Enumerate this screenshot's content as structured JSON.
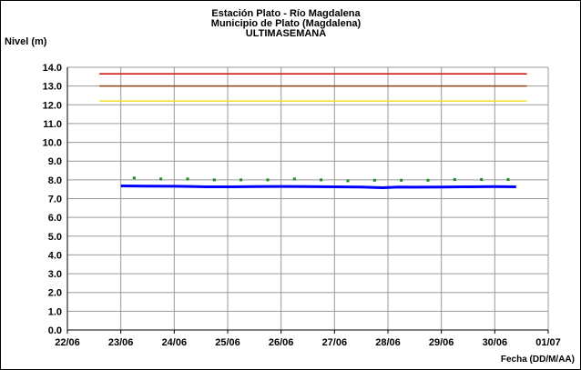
{
  "chart_data": {
    "type": "line",
    "title_lines": [
      "Estación Plato - Río Magdalena",
      "Municipio de Plato (Magdalena)",
      "ULTIMASEMANA"
    ],
    "ylabel": "Nivel (m)",
    "xlabel": "Fecha (DD/M/AA)",
    "ylim": [
      0,
      14
    ],
    "y_ticks": [
      "0.0",
      "1.0",
      "2.0",
      "3.0",
      "4.0",
      "5.0",
      "6.0",
      "7.0",
      "8.0",
      "9.0",
      "10.0",
      "11.0",
      "12.0",
      "13.0",
      "14.0"
    ],
    "x_ticks": [
      "22/06",
      "23/06",
      "24/06",
      "25/06",
      "26/06",
      "27/06",
      "28/06",
      "29/06",
      "30/06",
      "01/07"
    ],
    "xlim_days": [
      22,
      31
    ],
    "grid": true,
    "threshold_lines": [
      {
        "color": "#cc0000",
        "value": 13.65,
        "x_start": 22.6,
        "x_end": 30.6
      },
      {
        "color": "#8b4513",
        "value": 13.0,
        "x_start": 22.6,
        "x_end": 30.6
      },
      {
        "color": "#f0e020",
        "value": 12.2,
        "x_start": 22.6,
        "x_end": 30.6
      }
    ],
    "series": [
      {
        "style": "line",
        "color": "#0000ff",
        "x": [
          23.0,
          23.5,
          24.0,
          24.3,
          24.6,
          25.0,
          25.5,
          26.0,
          26.5,
          27.0,
          27.5,
          27.9,
          28.2,
          28.5,
          29.0,
          29.5,
          30.0,
          30.4
        ],
        "y": [
          7.68,
          7.67,
          7.66,
          7.65,
          7.63,
          7.63,
          7.64,
          7.65,
          7.64,
          7.63,
          7.62,
          7.58,
          7.62,
          7.61,
          7.62,
          7.63,
          7.64,
          7.63
        ]
      },
      {
        "style": "points",
        "color": "#1a8a1a",
        "x": [
          23.25,
          23.75,
          24.25,
          24.75,
          25.25,
          25.75,
          26.25,
          26.75,
          27.25,
          27.75,
          28.25,
          28.75,
          29.25,
          29.75,
          30.25
        ],
        "y": [
          8.1,
          8.05,
          8.05,
          8.0,
          8.0,
          8.0,
          8.05,
          8.0,
          7.95,
          7.98,
          7.98,
          7.98,
          8.02,
          8.02,
          8.02
        ]
      }
    ]
  }
}
